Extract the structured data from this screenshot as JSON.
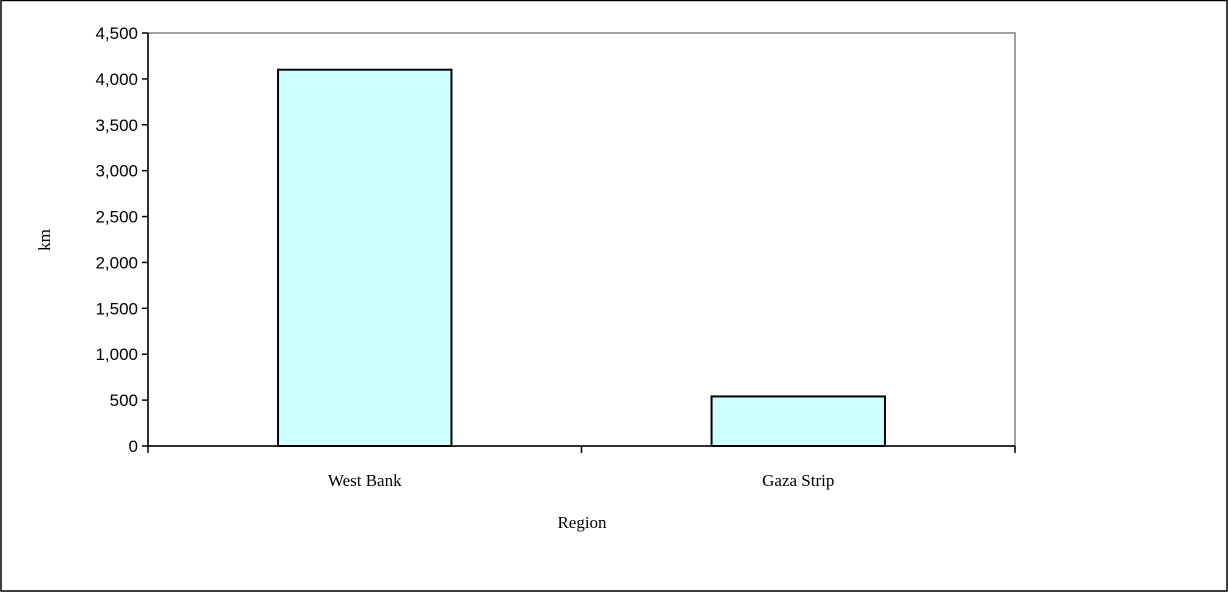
{
  "chart_data": {
    "type": "bar",
    "categories": [
      "West Bank",
      "Gaza Strip"
    ],
    "values": [
      4100,
      540
    ],
    "ylim": [
      0,
      4500
    ],
    "yticks": [
      "0",
      "500",
      "1,000",
      "1,500",
      "2,000",
      "2,500",
      "3,000",
      "3,500",
      "4,000",
      "4,500"
    ],
    "xlabel": "Region",
    "ylabel": "km",
    "legend": "none",
    "grid": false,
    "bar_color": "#ccffff",
    "bar_edge_color": "#000000",
    "plot_frame_color": "#808080"
  }
}
